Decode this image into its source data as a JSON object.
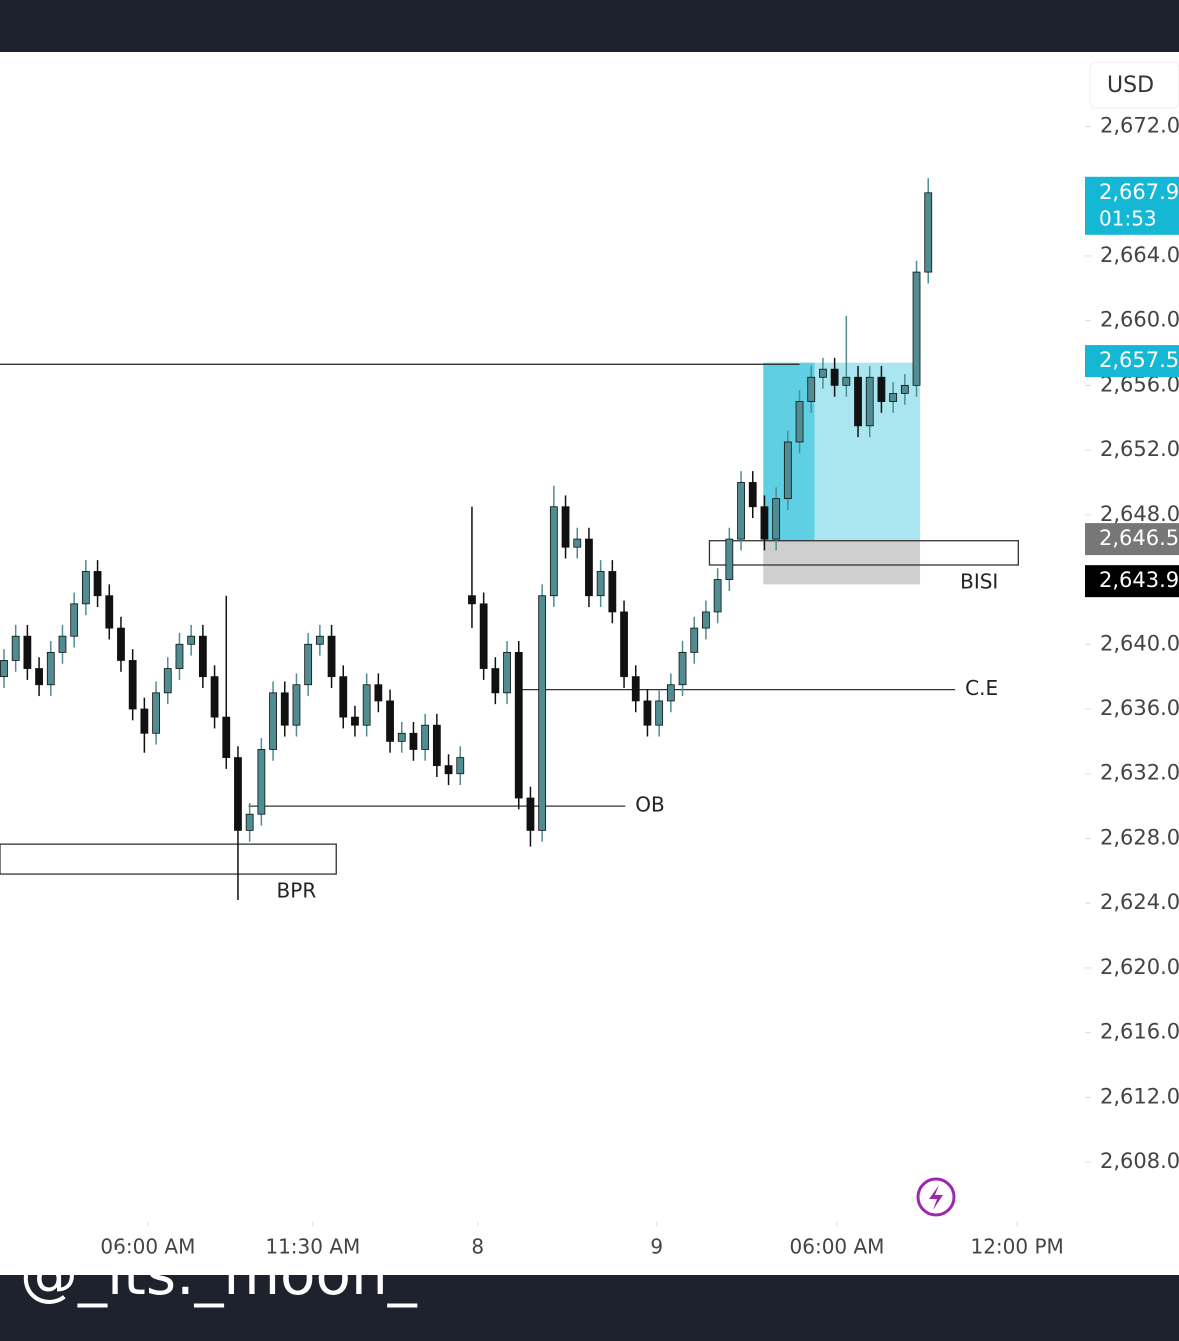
{
  "chart_data": {
    "type": "candlestick",
    "currency": "USD",
    "x": [
      0,
      1,
      2,
      3,
      4,
      5,
      6,
      7,
      8,
      9,
      10,
      11,
      12,
      13,
      14,
      15,
      16,
      17,
      18,
      19,
      20,
      21,
      22,
      23,
      24,
      25,
      26,
      27,
      28,
      29,
      30,
      31,
      32,
      33,
      34,
      35,
      36,
      37,
      38,
      39,
      40,
      41,
      42,
      43,
      44,
      45,
      46,
      47,
      48,
      49,
      50,
      51,
      52,
      53,
      54,
      55,
      56,
      57,
      58,
      59,
      60,
      61,
      62,
      63,
      64,
      65,
      66,
      67,
      68,
      69,
      70,
      71,
      72,
      73,
      74,
      75,
      76,
      77,
      78,
      79
    ],
    "open": [
      2638,
      2639,
      2640.5,
      2638.5,
      2637.5,
      2639.5,
      2640.5,
      2642.5,
      2644.5,
      2643,
      2641,
      2639,
      2636,
      2634.5,
      2637,
      2638.5,
      2640,
      2640.5,
      2638,
      2635.5,
      2633,
      2628.5,
      2629.5,
      2633.5,
      2637,
      2635,
      2637.5,
      2640,
      2640.5,
      2638,
      2635.5,
      2635,
      2637.5,
      2636.5,
      2634,
      2634.5,
      2633.5,
      2635,
      2632.5,
      2632,
      2643,
      2642.5,
      2638.5,
      2637,
      2639.5,
      2630.5,
      2628.5,
      2643,
      2648.5,
      2646,
      2646.5,
      2643,
      2644.5,
      2642,
      2638,
      2636.5,
      2635,
      2636.5,
      2637.5,
      2639.5,
      2641,
      2642,
      2644,
      2646.5,
      2650,
      2648.5,
      2646.5,
      2649,
      2652.5,
      2655,
      2656.5,
      2657,
      2656,
      2656.5,
      2653.5,
      2656.5,
      2655,
      2655.5,
      2656,
      2663
    ],
    "high": [
      2639.7,
      2641.2,
      2641.2,
      2639.2,
      2640.2,
      2641.2,
      2643.2,
      2645.2,
      2645.2,
      2643.7,
      2641.7,
      2639.7,
      2636.7,
      2637.7,
      2639.2,
      2640.7,
      2641.2,
      2641.2,
      2638.7,
      2643,
      2633.7,
      2630.2,
      2634.2,
      2637.7,
      2637.7,
      2638.2,
      2640.7,
      2641.2,
      2641.2,
      2638.7,
      2636.2,
      2638.2,
      2638.2,
      2637.2,
      2635.2,
      2635.2,
      2635.7,
      2635.7,
      2633.2,
      2633.7,
      2648.5,
      2643.2,
      2639.2,
      2640.2,
      2640.2,
      2631.2,
      2643.7,
      2649.8,
      2649.2,
      2647.2,
      2647.2,
      2645.2,
      2645.2,
      2642.7,
      2638.7,
      2637.2,
      2637.2,
      2638.2,
      2640.2,
      2641.7,
      2642.7,
      2644.7,
      2647.2,
      2650.7,
      2650.7,
      2649.2,
      2649.7,
      2653.2,
      2655.7,
      2657.2,
      2657.7,
      2657.7,
      2660.3,
      2657.2,
      2657.2,
      2657.2,
      2656.2,
      2656.7,
      2663.7,
      2668.8
    ],
    "low": [
      2637.3,
      2638.3,
      2637.8,
      2636.8,
      2636.8,
      2638.8,
      2639.8,
      2641.8,
      2642.3,
      2640.3,
      2638.3,
      2635.3,
      2633.3,
      2633.8,
      2636.3,
      2637.8,
      2639.3,
      2637.3,
      2634.8,
      2632.3,
      2624.2,
      2627.8,
      2628.8,
      2632.8,
      2634.3,
      2634.3,
      2636.8,
      2639.3,
      2637.3,
      2634.8,
      2634.3,
      2634.3,
      2635.8,
      2633.3,
      2633.3,
      2632.8,
      2632.8,
      2631.8,
      2631.3,
      2631.3,
      2641,
      2637.8,
      2636.3,
      2636.3,
      2629.8,
      2627.5,
      2627.8,
      2642.3,
      2645.3,
      2645.3,
      2642.3,
      2642.3,
      2641.3,
      2637.3,
      2635.8,
      2634.3,
      2634.3,
      2635.8,
      2636.8,
      2638.8,
      2640.3,
      2641.3,
      2643.3,
      2645.8,
      2647.8,
      2645.8,
      2645.8,
      2648.3,
      2651.8,
      2654.3,
      2655.8,
      2655.3,
      2655.3,
      2652.8,
      2652.8,
      2654.3,
      2654.3,
      2654.8,
      2655.3,
      2662.3
    ],
    "close": [
      2639,
      2640.5,
      2638.5,
      2637.5,
      2639.5,
      2640.5,
      2642.5,
      2644.5,
      2643,
      2641,
      2639,
      2636,
      2634.5,
      2637,
      2638.5,
      2640,
      2640.5,
      2638,
      2635.5,
      2633,
      2628.5,
      2629.5,
      2633.5,
      2637,
      2635,
      2637.5,
      2640,
      2640.5,
      2638,
      2635.5,
      2635,
      2637.5,
      2636.5,
      2634,
      2634.5,
      2633.5,
      2635,
      2632.5,
      2632,
      2633,
      2642.5,
      2638.5,
      2637,
      2639.5,
      2630.5,
      2628.5,
      2643,
      2648.5,
      2646,
      2646.5,
      2643,
      2644.5,
      2642,
      2638,
      2636.5,
      2635,
      2636.5,
      2637.5,
      2639.5,
      2641,
      2642,
      2644,
      2646.5,
      2650,
      2648.5,
      2646.5,
      2649,
      2652.5,
      2655,
      2656.5,
      2657,
      2656,
      2656.5,
      2653.5,
      2656.5,
      2655,
      2655.5,
      2656,
      2663,
      2667.9
    ],
    "up_color": "#4f8d92",
    "down_color": "#111111",
    "xlim": [
      -0.34,
      92.4
    ],
    "ylim": [
      2604.3,
      2676.6
    ],
    "xticks": [
      {
        "value": 12.3,
        "label": "06:00 AM"
      },
      {
        "value": 26.4,
        "label": "11:30 AM"
      },
      {
        "value": 40.5,
        "label": "8"
      },
      {
        "value": 55.8,
        "label": "9"
      },
      {
        "value": 71.2,
        "label": "06:00 AM"
      },
      {
        "value": 86.6,
        "label": "12:00 PM"
      }
    ],
    "yticks": [
      {
        "value": 2608,
        "label": "2,608.00"
      },
      {
        "value": 2612,
        "label": "2,612.00"
      },
      {
        "value": 2616,
        "label": "2,616.00"
      },
      {
        "value": 2620,
        "label": "2,620.00"
      },
      {
        "value": 2624,
        "label": "2,624.00"
      },
      {
        "value": 2628,
        "label": "2,628.00"
      },
      {
        "value": 2632,
        "label": "2,632.00"
      },
      {
        "value": 2636,
        "label": "2,636.00"
      },
      {
        "value": 2640,
        "label": "2,640.00"
      },
      {
        "value": 2648,
        "label": "2,648.00"
      },
      {
        "value": 2652,
        "label": "2,652.00"
      },
      {
        "value": 2656,
        "label": "2,656.00"
      },
      {
        "value": 2660,
        "label": "2,660.00"
      },
      {
        "value": 2664,
        "label": "2,664.00"
      },
      {
        "value": 2672,
        "label": "2,672.00"
      }
    ],
    "price_tags": [
      {
        "value": 2667.9,
        "label": "2,667.90",
        "countdown": "01:53",
        "color": "#14b8d4"
      },
      {
        "value": 2657.5,
        "label": "2,657.50",
        "color": "#14b8d4"
      },
      {
        "value": 2646.5,
        "label": "2,646.50",
        "color": "#777777"
      },
      {
        "value": 2643.9,
        "label": "2,643.90",
        "color": "#000000"
      }
    ],
    "lines": [
      {
        "x0": -0.34,
        "x1": 68,
        "level": 2657.3
      },
      {
        "x0": 20.9,
        "x1": 53.1,
        "level": 2630.0,
        "label": "OB"
      },
      {
        "x0": 44.3,
        "x1": 81.3,
        "level": 2637.2,
        "label": "C.E"
      }
    ],
    "boxes": [
      {
        "x0": -0.34,
        "x1": 28.4,
        "top": 2627.65,
        "bottom": 2625.8,
        "label": "BPR"
      },
      {
        "x0": 60.3,
        "x1": 86.7,
        "top": 2646.4,
        "bottom": 2644.9,
        "label": "BISI"
      }
    ],
    "position": {
      "x0": 64.9,
      "x1": 78.3,
      "x_now": 69.3,
      "target": 2657.4,
      "entry": 2646.4,
      "stop": 2643.7
    },
    "watermark": "@_its._moon_"
  }
}
